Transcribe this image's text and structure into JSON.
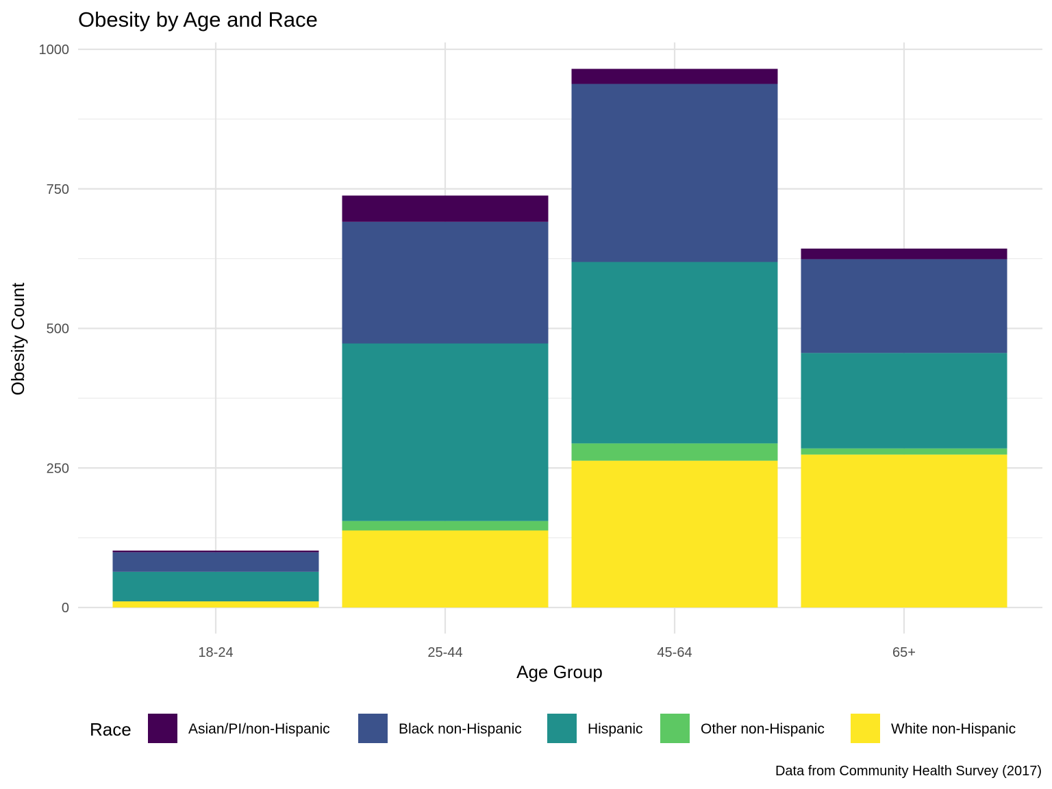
{
  "chart_data": {
    "type": "bar",
    "stacked": true,
    "title": "Obesity by Age and Race",
    "xlabel": "Age Group",
    "ylabel": "Obesity Count",
    "caption": "Data from Community Health Survey (2017)",
    "categories": [
      "18-24",
      "25-44",
      "45-64",
      "65+"
    ],
    "ylim": [
      0,
      1000
    ],
    "yticks": [
      0,
      250,
      500,
      750,
      1000
    ],
    "grid": true,
    "legend": {
      "title": "Race",
      "position": "bottom"
    },
    "series": [
      {
        "name": "White non-Hispanic",
        "color": "#FDE725",
        "values": [
          11,
          138,
          263,
          274
        ]
      },
      {
        "name": "Other non-Hispanic",
        "color": "#5DC863",
        "values": [
          0,
          17,
          31,
          11
        ]
      },
      {
        "name": "Hispanic",
        "color": "#21908C",
        "values": [
          53,
          318,
          325,
          171
        ]
      },
      {
        "name": "Black non-Hispanic",
        "color": "#3B528B",
        "values": [
          35,
          218,
          319,
          168
        ]
      },
      {
        "name": "Asian/PI/non-Hispanic",
        "color": "#440154",
        "values": [
          3,
          47,
          27,
          19
        ]
      }
    ],
    "legend_order": [
      "Asian/PI/non-Hispanic",
      "Black non-Hispanic",
      "Hispanic",
      "Other non-Hispanic",
      "White non-Hispanic"
    ]
  }
}
